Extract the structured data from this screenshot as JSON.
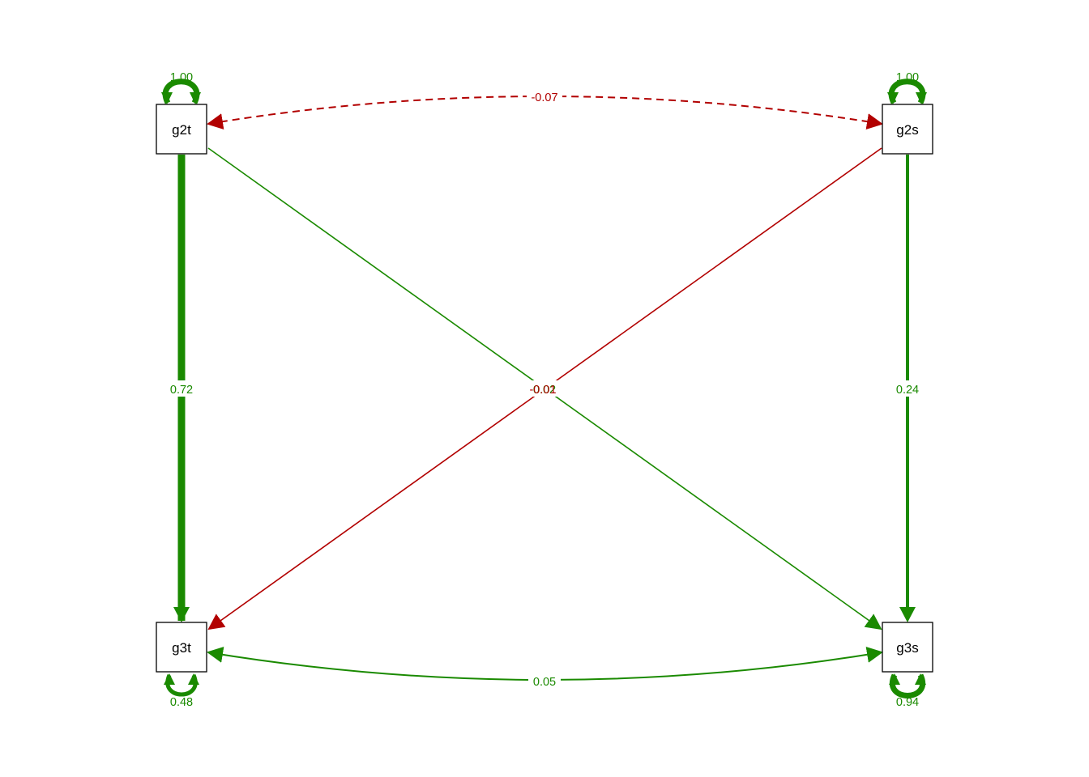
{
  "colors": {
    "positive": "#1a8a00",
    "negative": "#b20000",
    "node_border": "#000000",
    "background": "#ffffff"
  },
  "nodes": [
    {
      "id": "g2t",
      "label": "g2t"
    },
    {
      "id": "g2s",
      "label": "g2s"
    },
    {
      "id": "g3t",
      "label": "g3t"
    },
    {
      "id": "g3s",
      "label": "g3s"
    }
  ],
  "paths": [
    {
      "from": "g2t",
      "to": "g3t",
      "kind": "regression",
      "estimate": "0.72",
      "sign": "positive"
    },
    {
      "from": "g2s",
      "to": "g3s",
      "kind": "regression",
      "estimate": "0.24",
      "sign": "positive"
    },
    {
      "from": "g2t",
      "to": "g3s",
      "kind": "regression",
      "estimate": "0.02",
      "sign": "positive"
    },
    {
      "from": "g2s",
      "to": "g3t",
      "kind": "regression",
      "estimate": "-0.01",
      "sign": "negative"
    },
    {
      "from": "g2t",
      "to": "g2s",
      "kind": "covariance",
      "estimate": "-0.07",
      "sign": "negative",
      "line": "dashed"
    },
    {
      "from": "g3t",
      "to": "g3s",
      "kind": "covariance",
      "estimate": "0.05",
      "sign": "positive",
      "line": "solid"
    }
  ],
  "variances": [
    {
      "node": "g2t",
      "estimate": "1.00",
      "side": "top"
    },
    {
      "node": "g2s",
      "estimate": "1.00",
      "side": "top"
    },
    {
      "node": "g3t",
      "estimate": "0.48",
      "side": "bottom"
    },
    {
      "node": "g3s",
      "estimate": "0.94",
      "side": "bottom"
    }
  ]
}
